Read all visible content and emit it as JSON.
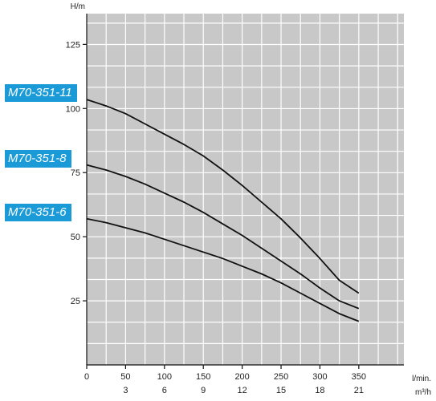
{
  "chart_data": {
    "type": "line",
    "ylabel": "H/m",
    "xlabel_primary": "l/min.",
    "xlabel_secondary": "m³/h",
    "xlim": [
      0,
      408
    ],
    "ylim": [
      0,
      137
    ],
    "x_ticks": [
      0,
      50,
      100,
      150,
      200,
      250,
      300,
      350
    ],
    "x_ticks_secondary": [
      "3",
      "6",
      "9",
      "12",
      "15",
      "18",
      "21"
    ],
    "y_ticks": [
      25,
      50,
      75,
      100,
      125
    ],
    "grid": true,
    "grid_x_step": 25,
    "grid_y_step": 8.33,
    "background_color": "#c8c8c8",
    "grid_color": "#ffffff",
    "line_color": "#111111",
    "label_color": "#1a9ad6",
    "series": [
      {
        "name": "M70-351-11",
        "x": [
          0,
          25,
          50,
          75,
          100,
          125,
          150,
          175,
          200,
          225,
          250,
          275,
          300,
          325,
          350
        ],
        "y": [
          103.5,
          101,
          98,
          94,
          90,
          86,
          81.5,
          76,
          70,
          63.5,
          57,
          49.5,
          41.5,
          33,
          28
        ]
      },
      {
        "name": "M70-351-8",
        "x": [
          0,
          25,
          50,
          75,
          100,
          125,
          150,
          175,
          200,
          225,
          250,
          275,
          300,
          325,
          350
        ],
        "y": [
          78,
          76,
          73.5,
          70.5,
          67,
          63.5,
          59.5,
          55,
          50.5,
          45.5,
          40.5,
          35.5,
          30,
          25,
          22
        ]
      },
      {
        "name": "M70-351-6",
        "x": [
          0,
          25,
          50,
          75,
          100,
          125,
          150,
          175,
          200,
          225,
          250,
          275,
          300,
          325,
          350
        ],
        "y": [
          57,
          55.5,
          53.5,
          51.5,
          49,
          46.5,
          44,
          41.5,
          38.5,
          35.5,
          32,
          28,
          24,
          20,
          17
        ]
      }
    ]
  }
}
